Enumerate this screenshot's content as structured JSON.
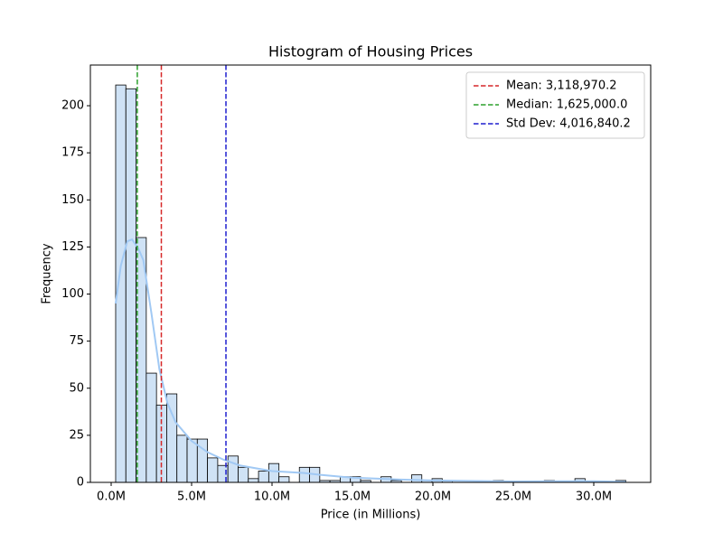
{
  "chart_data": {
    "type": "histogram",
    "title": "Histogram of Housing Prices",
    "xlabel": "Price (in Millions)",
    "ylabel": "Frequency",
    "bins": [
      280000,
      914400,
      1548800,
      2183200,
      2817600,
      3452000,
      4086400,
      4720800,
      5355200,
      5989600,
      6624000,
      7258400,
      7892800,
      8527200,
      9161600,
      9796000,
      10430400,
      11064800,
      11699200,
      12333600,
      12968000,
      13602400,
      14236800,
      14871200,
      15505600,
      16140000,
      16774400,
      17408800,
      18043200,
      18677600,
      19312000,
      19946400,
      20580800,
      21215200,
      21849600,
      22484000,
      23118400,
      23752800,
      24387200,
      25021600,
      25656000,
      26290400,
      26924800,
      27559200,
      28193600,
      28828000,
      29462400,
      30096800,
      30731200,
      31365600,
      32000000
    ],
    "counts": [
      211,
      209,
      130,
      58,
      41,
      47,
      25,
      23,
      23,
      13,
      9,
      14,
      8,
      2,
      6,
      10,
      3,
      0,
      8,
      8,
      1,
      1,
      3,
      3,
      1,
      0,
      3,
      1,
      0,
      4,
      1,
      2,
      1,
      0,
      0,
      0,
      0,
      1,
      0,
      0,
      0,
      0,
      1,
      0,
      0,
      2,
      0,
      0,
      0,
      1
    ],
    "color": "#cfe2f5",
    "edgecolor": "#000000",
    "kde": {
      "color": "#a1c9f4",
      "x": [
        280000,
        600000,
        1000000,
        1300000,
        1700000,
        2000000,
        2500000,
        3000000,
        3500000,
        4000000,
        5000000,
        6000000,
        7000000,
        8000000,
        10000000,
        12000000,
        13000000,
        15000000,
        18000000,
        20000000,
        25000000,
        28000000,
        30000000,
        32000000
      ],
      "y": [
        95,
        115,
        128,
        129,
        124,
        118,
        90,
        60,
        42,
        32,
        22,
        16,
        12,
        9,
        6,
        5,
        4,
        2.5,
        1.5,
        1,
        0.5,
        0.6,
        0.6,
        0.3
      ]
    },
    "lines": [
      {
        "label": "Mean: 3,118,970.2",
        "x": 3118970.2,
        "color": "#d62728"
      },
      {
        "label": "Median: 1,625,000.0",
        "x": 1625000,
        "color": "#2ca02c"
      },
      {
        "label": "Std Dev: 4,016,840.2",
        "x": 7135810.4,
        "color": "#1f1fcf"
      }
    ],
    "legend": "upper right",
    "xlim": [
      -1292000,
      33540000
    ],
    "xticks": [
      {
        "value": 0,
        "label": "0.0M"
      },
      {
        "value": 5000000,
        "label": "5.0M"
      },
      {
        "value": 10000000,
        "label": "10.0M"
      },
      {
        "value": 15000000,
        "label": "15.0M"
      },
      {
        "value": 20000000,
        "label": "20.0M"
      },
      {
        "value": 25000000,
        "label": "25.0M"
      },
      {
        "value": 30000000,
        "label": "30.0M"
      }
    ],
    "ylim": [
      0,
      221.6
    ],
    "yticks": [
      0,
      25,
      50,
      75,
      100,
      125,
      150,
      175,
      200
    ]
  }
}
